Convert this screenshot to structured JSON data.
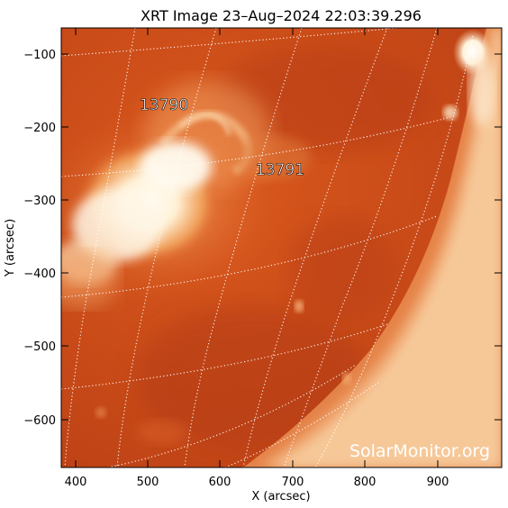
{
  "title": "XRT Image 23–Aug–2024 22:03:39.296",
  "xlabel": "X (arcsec)",
  "ylabel": "Y (arcsec)",
  "watermark": "SolarMonitor.org",
  "x_ticks": [
    "400",
    "500",
    "600",
    "700",
    "800",
    "900"
  ],
  "y_ticks": [
    "−100",
    "−200",
    "−300",
    "−400",
    "−500",
    "−600"
  ],
  "regions": [
    {
      "label": "13790",
      "x_arcsec": 515,
      "y_arcsec": -170
    },
    {
      "label": "13791",
      "x_arcsec": 675,
      "y_arcsec": -255
    }
  ],
  "colors": {
    "background": "#ffffff",
    "disk_base": "#c94a18",
    "disk_dark": "#a03312",
    "limb_bright": "#ffe7c6",
    "active_region_core": "#fffaf0",
    "grid": "#ffffff",
    "axes": "#000000",
    "region_label": "#ffffff"
  }
}
